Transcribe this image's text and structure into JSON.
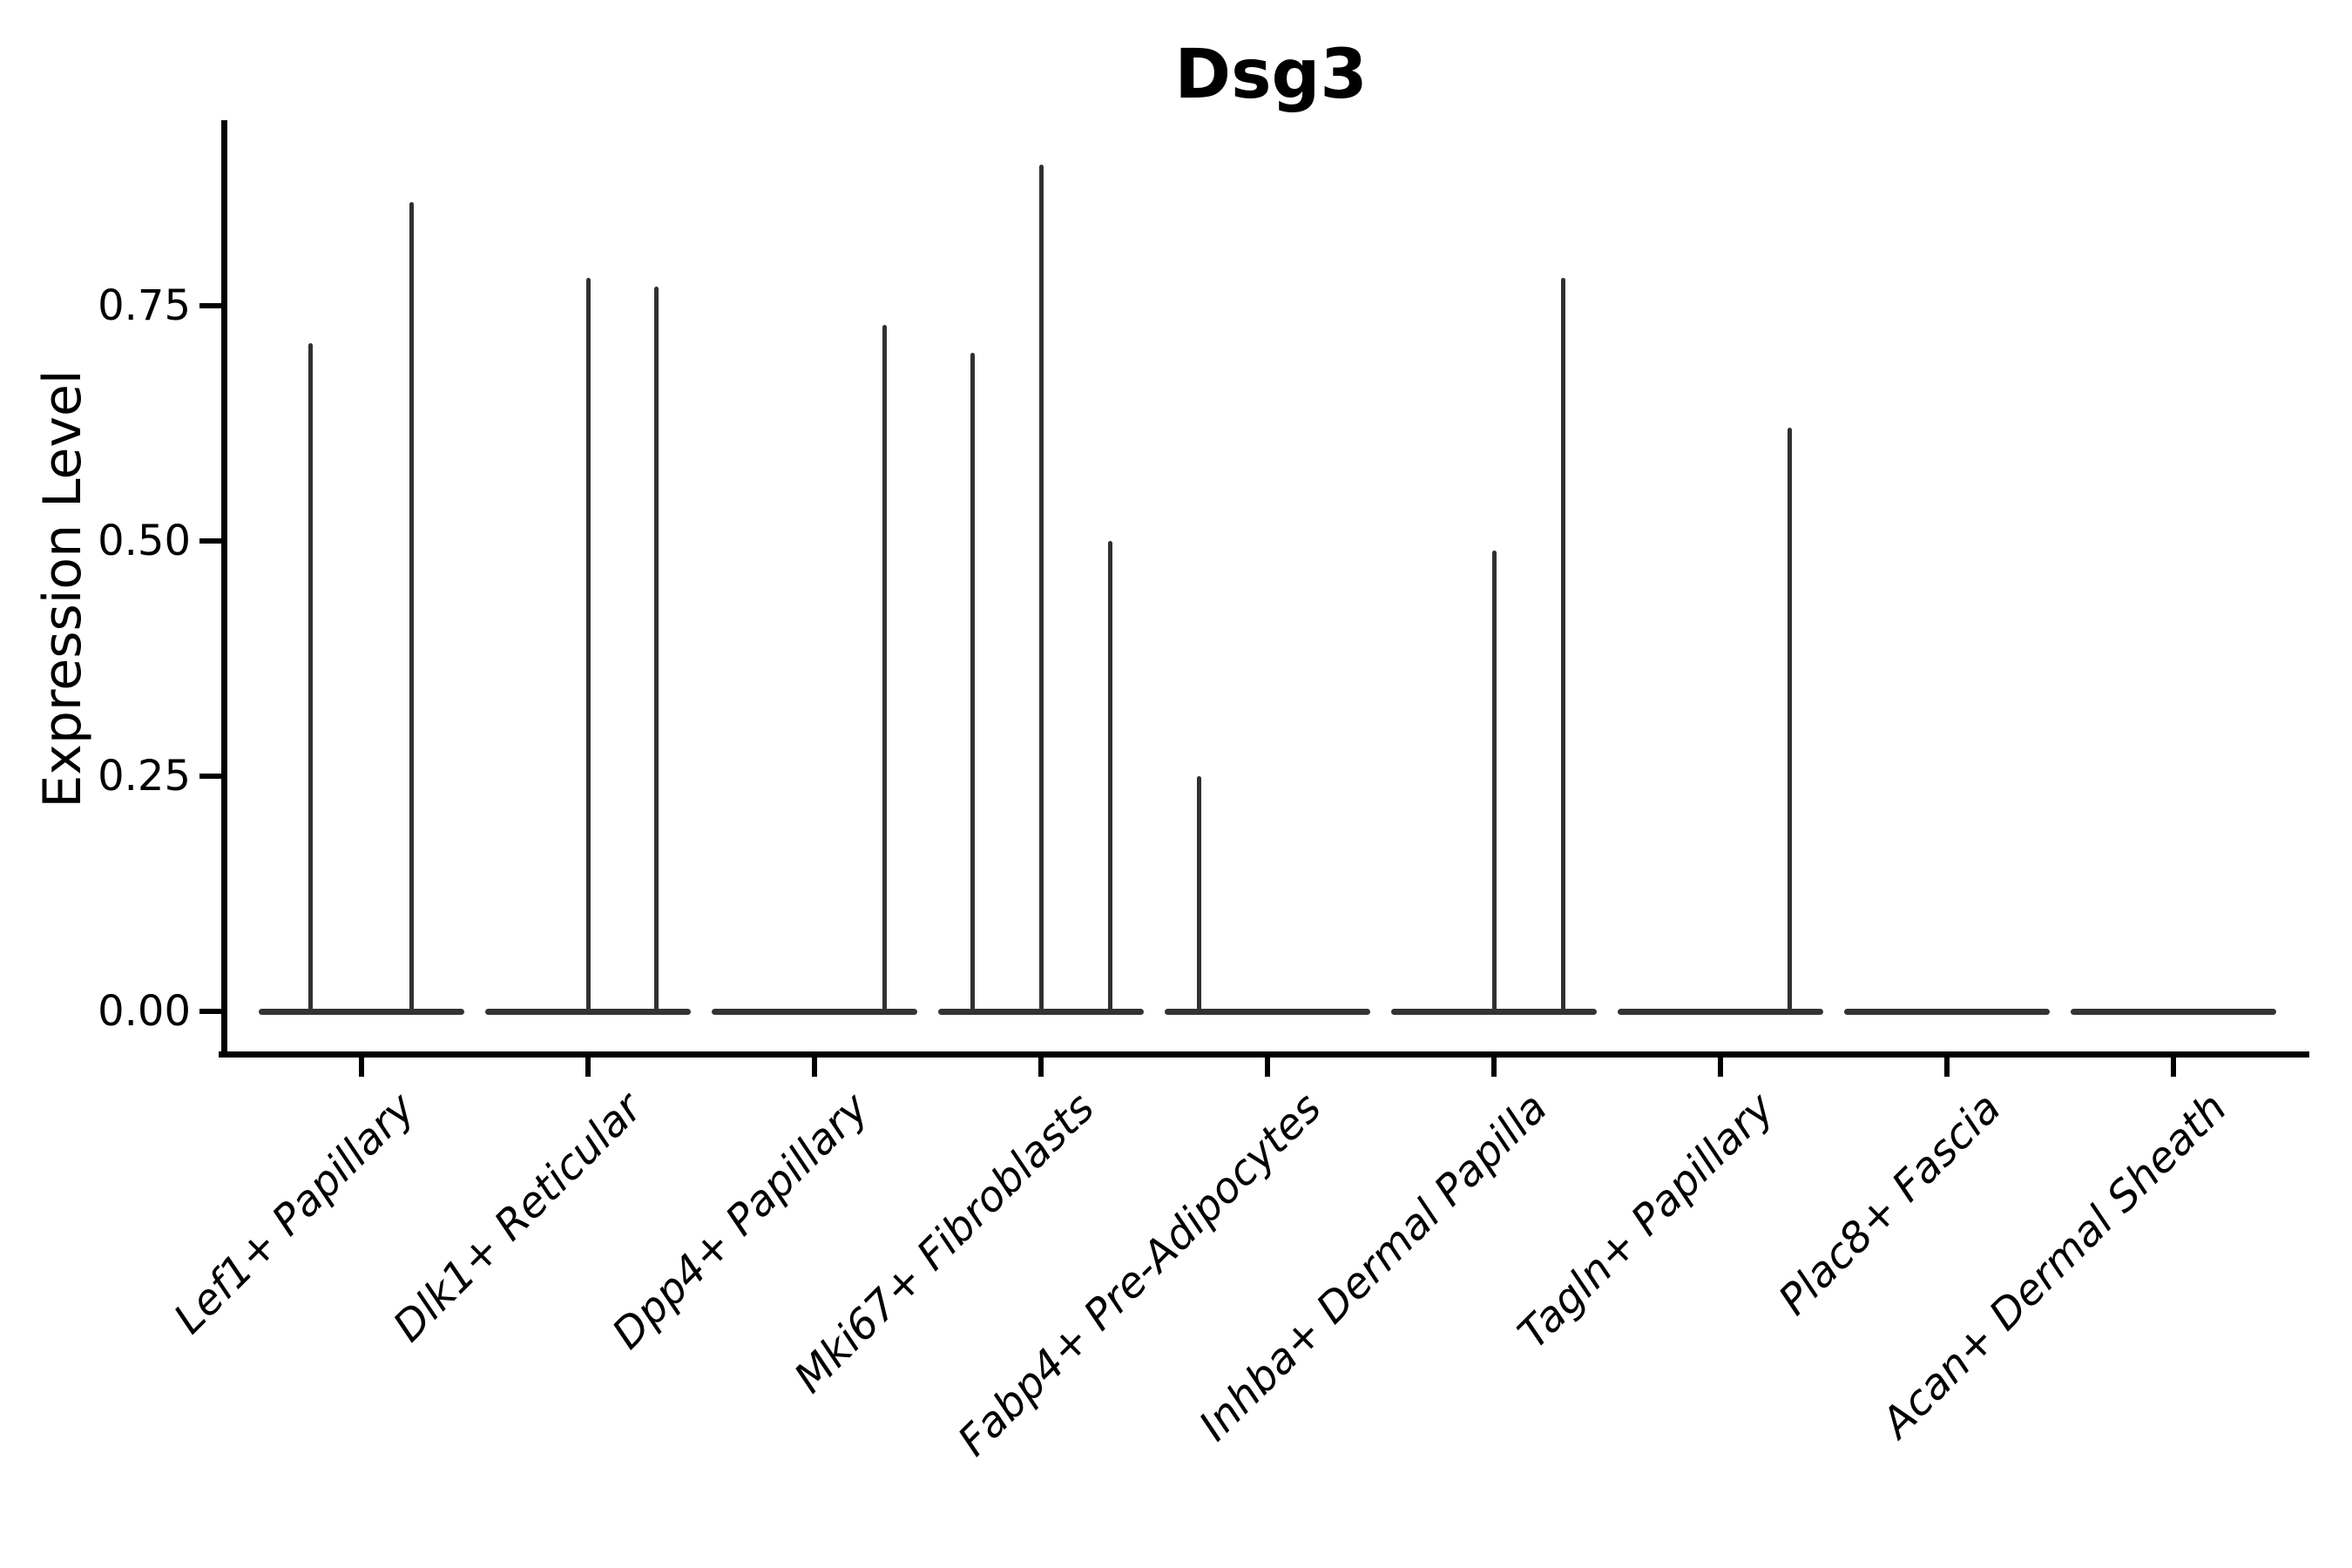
{
  "chart_data": {
    "type": "violin",
    "title": "Dsg3",
    "ylabel": "Expression Level",
    "xlabel": "",
    "grid": false,
    "legend": null,
    "ylim": [
      0,
      0.95
    ],
    "ytick_values": [
      0.0,
      0.25,
      0.5,
      0.75
    ],
    "ytick_labels": [
      "0.00",
      "0.25",
      "0.50",
      "0.75"
    ],
    "categories": [
      "Lef1+ Papillary",
      "Dlk1+ Reticular",
      "Dpp4+ Papillary",
      "Mki67+ Fibroblasts",
      "Fabp4+ Pre-Adipocytes",
      "Inhba+ Dermal Papilla",
      "Tagln+ Papillary",
      "Plac8+ Fascia",
      "Acan+ Dermal Sheath"
    ],
    "violins": [
      {
        "category": "Lef1+ Papillary",
        "baseline_value": 0,
        "spikes": [
          {
            "offset": -59,
            "peak": 0.71
          },
          {
            "offset": 57,
            "peak": 0.86
          }
        ]
      },
      {
        "category": "Dlk1+ Reticular",
        "baseline_value": 0,
        "spikes": [
          {
            "offset": 0,
            "peak": 0.78
          },
          {
            "offset": 78,
            "peak": 0.77
          }
        ]
      },
      {
        "category": "Dpp4+ Papillary",
        "baseline_value": 0,
        "spikes": [
          {
            "offset": 80,
            "peak": 0.73
          }
        ]
      },
      {
        "category": "Mki67+ Fibroblasts",
        "baseline_value": 0,
        "spikes": [
          {
            "offset": -79,
            "peak": 0.7
          },
          {
            "offset": 0,
            "peak": 0.9
          },
          {
            "offset": 79,
            "peak": 0.5
          }
        ]
      },
      {
        "category": "Fabp4+ Pre-Adipocytes",
        "baseline_value": 0,
        "spikes": [
          {
            "offset": -79,
            "peak": 0.25
          }
        ]
      },
      {
        "category": "Inhba+ Dermal Papilla",
        "baseline_value": 0,
        "spikes": [
          {
            "offset": 0,
            "peak": 0.49
          },
          {
            "offset": 79,
            "peak": 0.78
          }
        ]
      },
      {
        "category": "Tagln+ Papillary",
        "baseline_value": 0,
        "spikes": [
          {
            "offset": 79,
            "peak": 0.62
          }
        ]
      },
      {
        "category": "Plac8+ Fascia",
        "baseline_value": 0,
        "spikes": []
      },
      {
        "category": "Acan+ Dermal Sheath",
        "baseline_value": 0,
        "spikes": []
      }
    ],
    "colors": {
      "violin": "#333333",
      "spike": "#303030",
      "axis": "#000000",
      "text": "#000000",
      "background": "#ffffff"
    }
  }
}
